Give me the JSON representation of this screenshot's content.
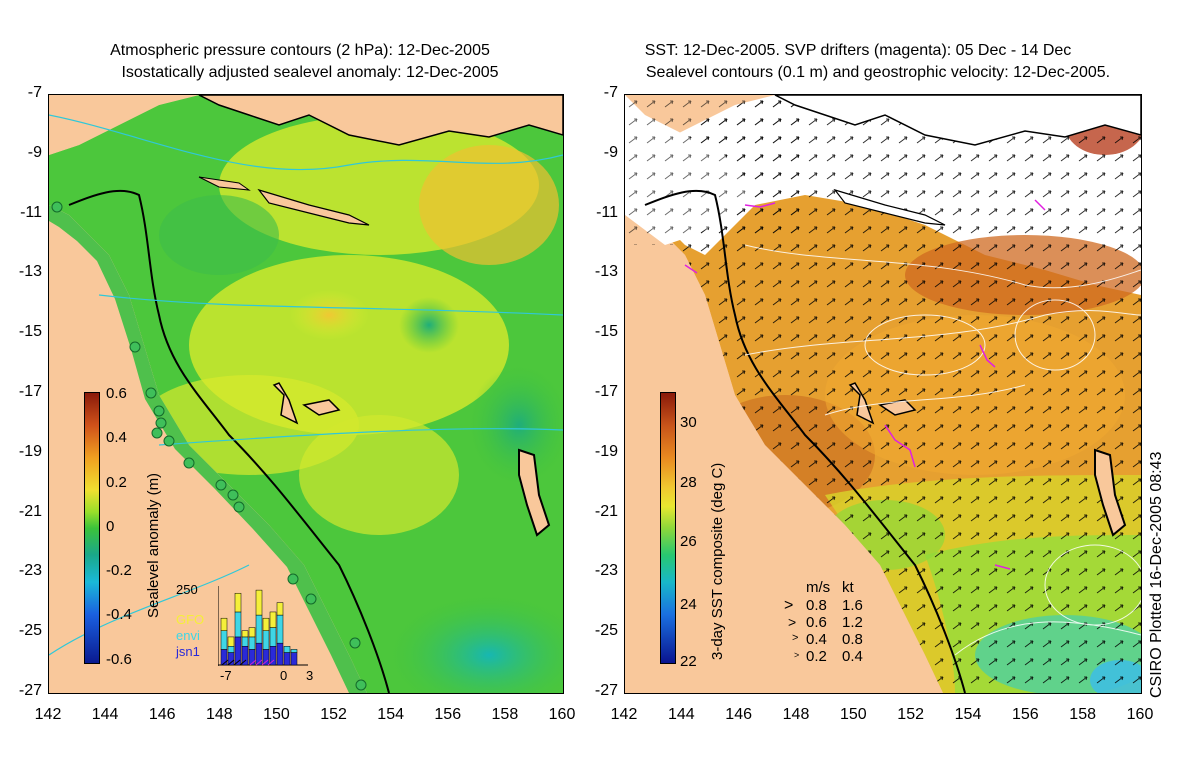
{
  "left": {
    "title_line1": "Atmospheric pressure contours (2 hPa): 12-Dec-2005",
    "title_line2": "Isostatically adjusted sealevel anomaly: 12-Dec-2005",
    "colorbar_label": "Sealevel anomaly (m)",
    "colorbar_ticks": [
      "0.6",
      "0.4",
      "0.2",
      "0",
      "-0.2",
      "-0.4",
      "-0.6"
    ],
    "inset": {
      "ymax_label": "250",
      "legend": [
        "GFO",
        "envi",
        "jsn1"
      ],
      "legend_colors": [
        "#f5ef3a",
        "#3fd6e6",
        "#2a2ad8"
      ],
      "xticks": [
        "-7",
        "0",
        "3"
      ],
      "bars": [
        {
          "gfo": 40,
          "envi": 60,
          "jsn1": 50
        },
        {
          "gfo": 30,
          "envi": 20,
          "jsn1": 40
        },
        {
          "gfo": 60,
          "envi": 80,
          "jsn1": 90
        },
        {
          "gfo": 20,
          "envi": 30,
          "jsn1": 60
        },
        {
          "gfo": 30,
          "envi": 40,
          "jsn1": 50
        },
        {
          "gfo": 80,
          "envi": 90,
          "jsn1": 70
        },
        {
          "gfo": 40,
          "envi": 60,
          "jsn1": 50
        },
        {
          "gfo": 50,
          "envi": 60,
          "jsn1": 60
        },
        {
          "gfo": 40,
          "envi": 90,
          "jsn1": 70
        },
        {
          "gfo": 0,
          "envi": 20,
          "jsn1": 40
        },
        {
          "gfo": 0,
          "envi": 10,
          "jsn1": 40
        }
      ]
    }
  },
  "right": {
    "title_line1": "SST: 12-Dec-2005. SVP drifters (magenta): 05 Dec - 14 Dec",
    "title_line2": "Sealevel contours (0.1 m) and geostrophic velocity: 12-Dec-2005.",
    "colorbar_label": "3-day SST composite (deg C)",
    "colorbar_ticks": [
      "30",
      "28",
      "26",
      "24",
      "22"
    ],
    "velocity_legend": {
      "header_ms": "m/s",
      "header_kt": "kt",
      "rows": [
        {
          "ms": "0.8",
          "kt": "1.6"
        },
        {
          "ms": "0.6",
          "kt": "1.2"
        },
        {
          "ms": "0.4",
          "kt": "0.8"
        },
        {
          "ms": "0.2",
          "kt": "0.4"
        }
      ]
    }
  },
  "axes": {
    "yticks": [
      "-7",
      "-9",
      "-11",
      "-13",
      "-15",
      "-17",
      "-19",
      "-21",
      "-23",
      "-25",
      "-27"
    ],
    "xticks": [
      "142",
      "144",
      "146",
      "148",
      "150",
      "152",
      "154",
      "156",
      "158",
      "160"
    ]
  },
  "credit": "CSIRO Plotted 16-Dec-2005 08:43",
  "colors": {
    "land": "#f9c89b",
    "ocean_green": "#48c93c",
    "ocean_yellow": "#e6ef2a",
    "sst_orange": "#e28a1e",
    "sst_green": "#8ed83a",
    "coast_contour": "#30c8d8"
  }
}
